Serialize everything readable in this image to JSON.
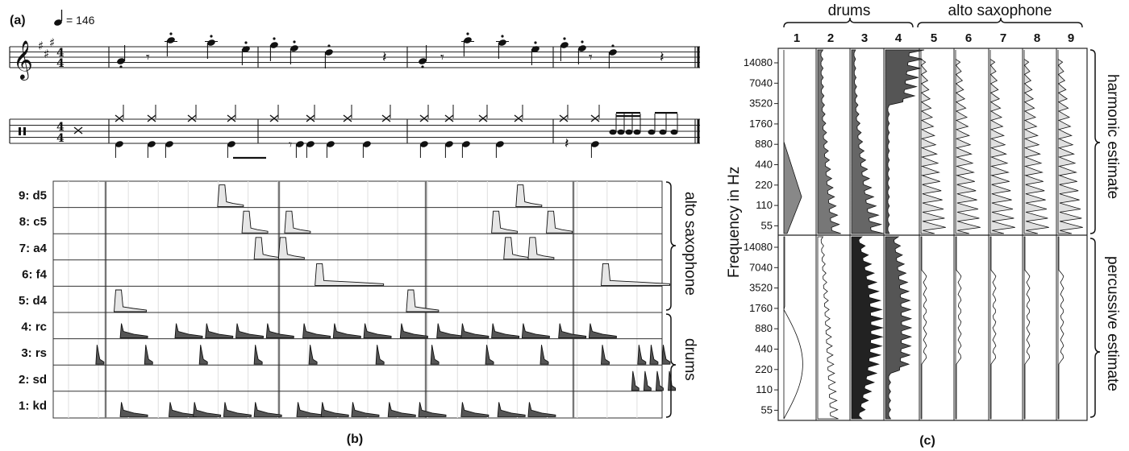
{
  "panel_a": {
    "label": "(a)",
    "tempo": "= 146"
  },
  "panel_b": {
    "label": "(b)",
    "rows": [
      "9: d5",
      "8: c5",
      "7: a4",
      "6: f4",
      "5: d4",
      "4: rc",
      "3: rs",
      "2: sd",
      "1: kd"
    ],
    "group_alto": "alto saxophone",
    "group_drums": "drums"
  },
  "panel_c": {
    "label": "(c)",
    "ylabel": "Frequency in Hz",
    "group_drums": "drums",
    "group_alto": "alto saxophone",
    "columns": [
      "1",
      "2",
      "3",
      "4",
      "5",
      "6",
      "7",
      "8",
      "9"
    ],
    "yticks_top": [
      "14080",
      "7040",
      "3520",
      "1760",
      "880",
      "440",
      "220",
      "110",
      "55"
    ],
    "yticks_bottom": [
      "14080",
      "7040",
      "3520",
      "1760",
      "880",
      "440",
      "220",
      "110",
      "55"
    ],
    "right_top": "harmonic estimate",
    "right_bottom": "percussive estimate"
  },
  "chart_data": [
    {
      "type": "line",
      "title": "",
      "series_names": [
        "9: d5",
        "8: c5",
        "7: a4",
        "6: f4",
        "5: d4",
        "4: rc",
        "3: rs",
        "2: sd",
        "1: kd"
      ],
      "onsets": {
        "9: d5": [
          0.27,
          0.76
        ],
        "8: c5": [
          0.31,
          0.38,
          0.72,
          0.81
        ],
        "7: a4": [
          0.33,
          0.37,
          0.74,
          0.78
        ],
        "6: f4": [
          0.43,
          0.9
        ],
        "5: d4": [
          0.1,
          0.58
        ],
        "4: rc": [
          0.11,
          0.2,
          0.25,
          0.3,
          0.35,
          0.41,
          0.46,
          0.51,
          0.57,
          0.63,
          0.67,
          0.72,
          0.77,
          0.83,
          0.88
        ],
        "3: rs": [
          0.07,
          0.15,
          0.24,
          0.33,
          0.42,
          0.53,
          0.62,
          0.71,
          0.8,
          0.9,
          0.96,
          0.98,
          1.0
        ],
        "2: sd": [
          0.95,
          0.97,
          0.99,
          1.01
        ],
        "1: kd": [
          0.11,
          0.19,
          0.23,
          0.28,
          0.33,
          0.4,
          0.44,
          0.49,
          0.55,
          0.6,
          0.67,
          0.73,
          0.78
        ]
      }
    },
    {
      "type": "line",
      "title": "",
      "ylabel": "Frequency in Hz",
      "categories": [
        "1",
        "2",
        "3",
        "4",
        "5",
        "6",
        "7",
        "8",
        "9"
      ],
      "y_ticks": [
        14080,
        7040,
        3520,
        1760,
        880,
        440,
        220,
        110,
        55
      ]
    }
  ]
}
